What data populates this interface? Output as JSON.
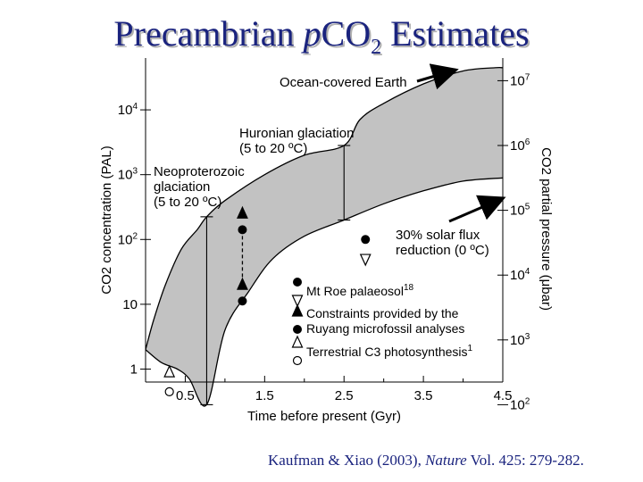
{
  "title": {
    "pre": "Precambrian ",
    "italic": "p",
    "post": "CO",
    "suffix": " Estimates"
  },
  "citation": {
    "authors": "Kaufman & Xiao (2003), ",
    "journal": "Nature",
    "rest": " Vol. 425: 279-282."
  },
  "chart_data": {
    "type": "area",
    "xlabel": "Time before present (Gyr)",
    "ylabel_left": "CO2 concentration (PAL)",
    "ylabel_right": "CO2 partial pressure (μbar)",
    "xlim": [
      0,
      4.5
    ],
    "x_ticks": [
      "0.5",
      "1.5",
      "2.5",
      "3.5",
      "4.5"
    ],
    "y_left_log_range": [
      -0.2,
      4.8
    ],
    "y_left_ticks": [
      {
        "exp": 0,
        "label": "1"
      },
      {
        "exp": 1,
        "label": "10"
      },
      {
        "exp": 2,
        "label": "10",
        "sup": "2"
      },
      {
        "exp": 3,
        "label": "10",
        "sup": "3"
      },
      {
        "exp": 4,
        "label": "10",
        "sup": "4"
      }
    ],
    "y_right_ticks": [
      {
        "exp": 2,
        "label": "10",
        "sup": "2"
      },
      {
        "exp": 3,
        "label": "10",
        "sup": "3"
      },
      {
        "exp": 4,
        "label": "10",
        "sup": "4"
      },
      {
        "exp": 5,
        "label": "10",
        "sup": "5"
      },
      {
        "exp": 6,
        "label": "10",
        "sup": "6"
      },
      {
        "exp": 7,
        "label": "10",
        "sup": "7"
      }
    ],
    "band_upper": [
      [
        0,
        0.3
      ],
      [
        0.1,
        0.75
      ],
      [
        0.25,
        1.3
      ],
      [
        0.45,
        1.85
      ],
      [
        0.65,
        2.15
      ],
      [
        0.77,
        2.35
      ],
      [
        1.0,
        2.6
      ],
      [
        1.5,
        3.0
      ],
      [
        2.0,
        3.3
      ],
      [
        2.5,
        3.45
      ],
      [
        2.7,
        3.85
      ],
      [
        3.0,
        4.1
      ],
      [
        3.5,
        4.4
      ],
      [
        4.0,
        4.6
      ],
      [
        4.4,
        4.65
      ],
      [
        4.5,
        4.65
      ]
    ],
    "band_lower": [
      [
        0,
        0.3
      ],
      [
        0.2,
        0.1
      ],
      [
        0.4,
        0.0
      ],
      [
        0.55,
        -0.15
      ],
      [
        0.77,
        -0.55
      ],
      [
        1.0,
        0.6
      ],
      [
        1.3,
        1.2
      ],
      [
        1.6,
        1.7
      ],
      [
        2.0,
        2.05
      ],
      [
        2.5,
        2.3
      ],
      [
        3.0,
        2.55
      ],
      [
        3.5,
        2.75
      ],
      [
        4.0,
        2.9
      ],
      [
        4.5,
        2.95
      ]
    ],
    "vertical_lines": [
      {
        "x": 0.77,
        "y_top": 2.35,
        "y_bottom": -0.55
      },
      {
        "x": 2.5,
        "y_top": 3.45,
        "y_bottom": 2.3
      }
    ],
    "markers": [
      {
        "name": "Mt Roe palaeosol",
        "x": 2.77,
        "kind": "filled-circle",
        "y": 2.0
      },
      {
        "name": "Mt Roe palaeosol",
        "x": 2.77,
        "kind": "open-triangle-down",
        "y": 1.7
      },
      {
        "name": "Ruyang constraints",
        "x": 1.22,
        "kind": "filled-triangle-up",
        "y": 2.4
      },
      {
        "name": "Ruyang constraints",
        "x": 1.22,
        "kind": "filled-circle",
        "y": 2.15
      },
      {
        "name": "Ruyang constraints",
        "x": 1.22,
        "kind": "filled-triangle-up",
        "y": 1.3
      },
      {
        "name": "Ruyang constraints",
        "x": 1.22,
        "kind": "filled-circle",
        "y": 1.05
      },
      {
        "name": "Terrestrial C3 photosynthesis",
        "x": 0.3,
        "kind": "open-triangle-up",
        "y": -0.05
      },
      {
        "name": "Terrestrial C3 photosynthesis",
        "x": 0.3,
        "kind": "open-circle",
        "y": -0.35
      }
    ],
    "dashed_link": {
      "x": 1.22,
      "y_from": 2.15,
      "y_to": 1.3
    },
    "annotations": [
      {
        "key": "ocean",
        "lines": [
          "Ocean-covered Earth"
        ]
      },
      {
        "key": "huronian",
        "lines": [
          "Huronian glaciation",
          "(5 to 20 ºC)"
        ]
      },
      {
        "key": "neoproterozoic",
        "lines": [
          "Neoproterozoic",
          "glaciation",
          "(5 to 20 ºC)"
        ]
      },
      {
        "key": "solar",
        "lines": [
          "30% solar flux",
          "reduction (0 ºC)"
        ]
      }
    ],
    "legend": [
      {
        "symbols": [
          "filled-circle",
          "open-triangle-down"
        ],
        "label": "Mt Roe palaeosol",
        "sup": "18"
      },
      {
        "symbols": [
          "filled-triangle-up",
          "filled-circle"
        ],
        "label": "Constraints provided by the",
        "label2": "Ruyang microfossil analyses"
      },
      {
        "symbols": [
          "open-triangle-up",
          "open-circle"
        ],
        "label": "Terrestrial C3 photosynthesis",
        "sup": "1"
      }
    ],
    "colors": {
      "band": "#c2c2c2",
      "ink": "#000000",
      "title": "#1a237e"
    }
  }
}
